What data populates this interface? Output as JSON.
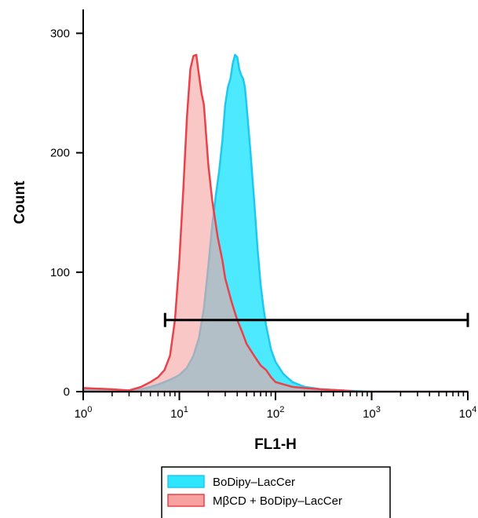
{
  "chart_data": {
    "type": "area",
    "xlabel": "FL1-H",
    "ylabel": "Count",
    "x_scale": "log",
    "xlim": [
      1,
      10000
    ],
    "ylim": [
      0,
      320
    ],
    "x_ticks": [
      {
        "value": 1,
        "base": "10",
        "exp": "0"
      },
      {
        "value": 10,
        "base": "10",
        "exp": "1"
      },
      {
        "value": 100,
        "base": "10",
        "exp": "2"
      },
      {
        "value": 1000,
        "base": "10",
        "exp": "3"
      },
      {
        "value": 10000,
        "base": "10",
        "exp": "4"
      }
    ],
    "y_ticks": [
      0,
      100,
      200,
      300
    ],
    "grid": false,
    "legend_position": "bottom-center",
    "gate": {
      "x_start": 7.1,
      "x_end": 10000,
      "y": 60
    },
    "series": [
      {
        "name": "BoDipy–LacCer",
        "fill": "#2ee6ff",
        "stroke": "#1ec8f0",
        "points": [
          [
            1,
            2
          ],
          [
            2,
            1
          ],
          [
            3,
            1
          ],
          [
            4,
            2
          ],
          [
            5,
            4
          ],
          [
            6,
            6
          ],
          [
            7,
            8
          ],
          [
            8,
            10
          ],
          [
            9,
            12
          ],
          [
            10,
            14
          ],
          [
            12,
            20
          ],
          [
            14,
            30
          ],
          [
            16,
            45
          ],
          [
            18,
            70
          ],
          [
            20,
            105
          ],
          [
            22,
            140
          ],
          [
            24,
            165
          ],
          [
            26,
            185
          ],
          [
            28,
            210
          ],
          [
            30,
            240
          ],
          [
            32,
            255
          ],
          [
            34,
            262
          ],
          [
            36,
            275
          ],
          [
            38,
            282
          ],
          [
            40,
            280
          ],
          [
            42,
            270
          ],
          [
            44,
            265
          ],
          [
            46,
            262
          ],
          [
            48,
            255
          ],
          [
            50,
            240
          ],
          [
            55,
            200
          ],
          [
            60,
            160
          ],
          [
            65,
            120
          ],
          [
            70,
            90
          ],
          [
            75,
            70
          ],
          [
            80,
            55
          ],
          [
            90,
            35
          ],
          [
            100,
            25
          ],
          [
            120,
            15
          ],
          [
            150,
            8
          ],
          [
            200,
            4
          ],
          [
            300,
            2
          ],
          [
            500,
            1
          ],
          [
            1000,
            0
          ],
          [
            10000,
            0
          ]
        ]
      },
      {
        "name": "MβCD + BoDipy–LacCer",
        "fill": "#f7a1a1",
        "stroke": "#e8424a",
        "points": [
          [
            1,
            3
          ],
          [
            2,
            2
          ],
          [
            3,
            1
          ],
          [
            4,
            4
          ],
          [
            5,
            8
          ],
          [
            6,
            12
          ],
          [
            7,
            18
          ],
          [
            8,
            30
          ],
          [
            9,
            60
          ],
          [
            10,
            110
          ],
          [
            11,
            170
          ],
          [
            12,
            230
          ],
          [
            13,
            270
          ],
          [
            14,
            281
          ],
          [
            15,
            282
          ],
          [
            16,
            265
          ],
          [
            17,
            250
          ],
          [
            18,
            240
          ],
          [
            20,
            190
          ],
          [
            22,
            160
          ],
          [
            25,
            130
          ],
          [
            28,
            110
          ],
          [
            30,
            95
          ],
          [
            35,
            75
          ],
          [
            40,
            60
          ],
          [
            45,
            50
          ],
          [
            50,
            40
          ],
          [
            60,
            30
          ],
          [
            70,
            22
          ],
          [
            80,
            18
          ],
          [
            90,
            12
          ],
          [
            100,
            8
          ],
          [
            150,
            4
          ],
          [
            200,
            3
          ],
          [
            300,
            2
          ],
          [
            500,
            1
          ],
          [
            700,
            0
          ],
          [
            10000,
            0
          ]
        ]
      }
    ]
  }
}
